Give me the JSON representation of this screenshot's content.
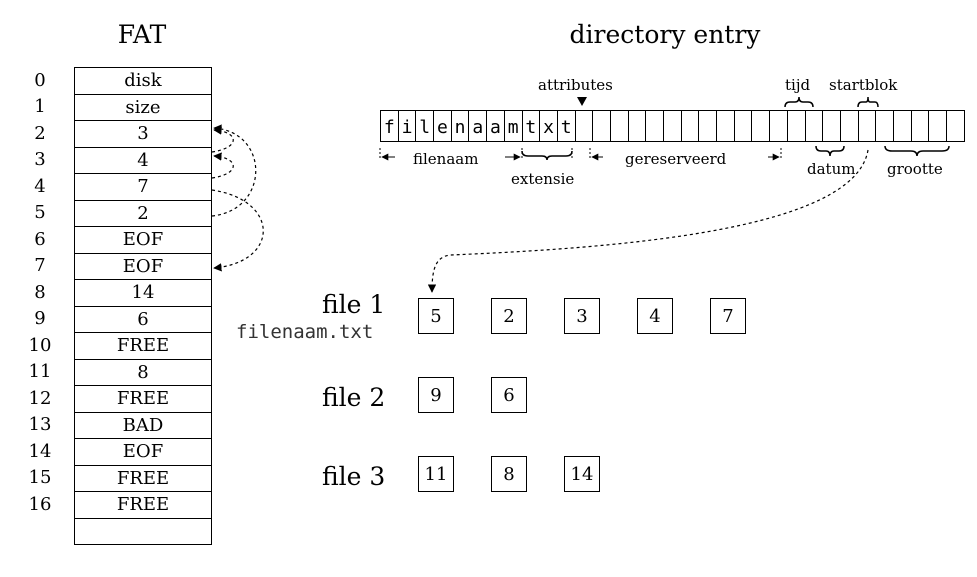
{
  "titles": {
    "fat": "FAT",
    "directory": "directory entry"
  },
  "fat": {
    "indices": [
      "0",
      "1",
      "2",
      "3",
      "4",
      "5",
      "6",
      "7",
      "8",
      "9",
      "10",
      "11",
      "12",
      "13",
      "14",
      "15",
      "16"
    ],
    "entries": [
      "disk",
      "size",
      "3",
      "4",
      "7",
      "2",
      "EOF",
      "EOF",
      "14",
      "6",
      "FREE",
      "8",
      "FREE",
      "BAD",
      "EOF",
      "FREE",
      "FREE",
      ""
    ]
  },
  "directory": {
    "chars": [
      "f",
      "i",
      "l",
      "e",
      "n",
      "a",
      "a",
      "m",
      "t",
      "x",
      "t",
      "",
      "",
      "",
      "",
      "",
      "",
      "",
      "",
      "",
      "",
      "",
      "",
      "",
      "",
      "",
      "",
      "",
      "",
      "",
      "",
      "",
      ""
    ],
    "labels": {
      "attributes": "attributes",
      "tijd": "tijd",
      "startblok": "startblok",
      "filenaam": "filenaam",
      "extensie": "extensie",
      "gereserveerd": "gereserveerd",
      "datum": "datum",
      "grootte": "grootte"
    }
  },
  "files": [
    {
      "label": "file 1",
      "name": "filenaam.txt",
      "blocks": [
        "5",
        "2",
        "3",
        "4",
        "7"
      ]
    },
    {
      "label": "file 2",
      "name": "",
      "blocks": [
        "9",
        "6"
      ]
    },
    {
      "label": "file 3",
      "name": "",
      "blocks": [
        "11",
        "8",
        "14"
      ]
    }
  ]
}
